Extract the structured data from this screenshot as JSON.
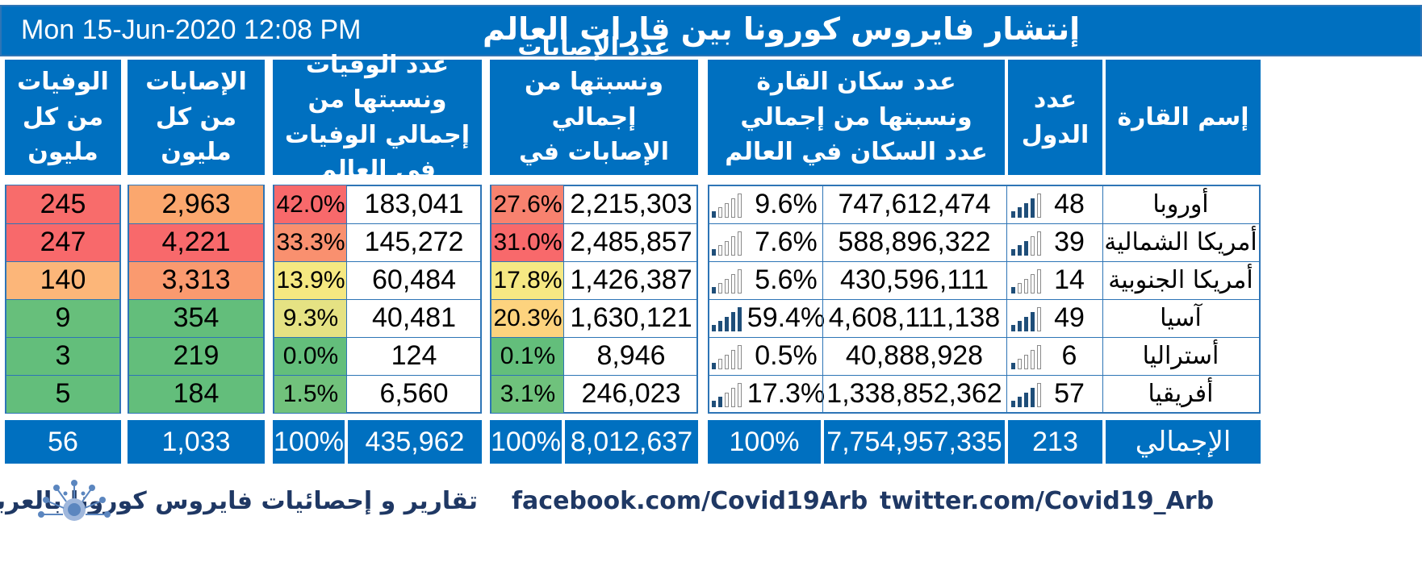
{
  "title": {
    "date": "Mon 15-Jun-2020 12:08 PM",
    "text": "إنتشار فايروس كورونا بين قارات العالم"
  },
  "headers": {
    "continent": "إسم القارة",
    "countries": "عدد الدول",
    "population": "عدد سكان القارة ونسبتها من إجمالي عدد السكان في العالم",
    "cases": "عدد الإصابات ونسبتها من إجمالي الإصابات في العالم",
    "deaths": "عدد الوفيات ونسبتها من إجمالي الوفيات في العالم",
    "cases_per_million": "الإصابات من كل مليون",
    "deaths_per_million": "الوفيات من كل مليون"
  },
  "colors": {
    "header_blue": "#0070c0",
    "border_blue": "#2e75b6",
    "red": "#f8696b",
    "orange": "#fba76e",
    "light_orange": "#fcb679",
    "yellow": "#f5e67e",
    "light_yellow": "#f7eb84",
    "green": "#63be7b",
    "light_green": "#7fc77d",
    "footer_text": "#1f3864"
  },
  "rows": [
    {
      "continent": "أوروبا",
      "countries": "48",
      "country_bars": 4,
      "population": "747,612,474",
      "pop_pct": "9.6%",
      "pop_bars": 1,
      "cases": "2,215,303",
      "cases_pct": "27.6%",
      "cases_pct_color": "#f8826f",
      "deaths": "183,041",
      "deaths_pct": "42.0%",
      "deaths_pct_color": "#f8696b",
      "cases_pm": "2,963",
      "cases_pm_color": "#fba76e",
      "deaths_pm": "245",
      "deaths_pm_color": "#f86c6b"
    },
    {
      "continent": "أمريكا الشمالية",
      "countries": "39",
      "country_bars": 3,
      "population": "588,896,322",
      "pop_pct": "7.6%",
      "pop_bars": 1,
      "cases": "2,485,857",
      "cases_pct": "31.0%",
      "cases_pct_color": "#f8696b",
      "deaths": "145,272",
      "deaths_pct": "33.3%",
      "deaths_pct_color": "#f9906f",
      "cases_pm": "4,221",
      "cases_pm_color": "#f8696b",
      "deaths_pm": "247",
      "deaths_pm_color": "#f8696b"
    },
    {
      "continent": "أمريكا الجنوبية",
      "countries": "14",
      "country_bars": 1,
      "population": "430,596,111",
      "pop_pct": "5.6%",
      "pop_bars": 1,
      "cases": "1,426,387",
      "cases_pct": "17.8%",
      "cases_pct_color": "#f6e883",
      "deaths": "60,484",
      "deaths_pct": "13.9%",
      "deaths_pct_color": "#f5e881",
      "cases_pm": "3,313",
      "cases_pm_color": "#fa9a6f",
      "deaths_pm": "140",
      "deaths_pm_color": "#fcb679"
    },
    {
      "continent": "آسيا",
      "countries": "49",
      "country_bars": 4,
      "population": "4,608,111,138",
      "pop_pct": "59.4%",
      "pop_bars": 5,
      "cases": "1,630,121",
      "cases_pct": "20.3%",
      "cases_pct_color": "#fdd37e",
      "deaths": "40,481",
      "deaths_pct": "9.3%",
      "deaths_pct_color": "#e5e283",
      "cases_pm": "354",
      "cases_pm_color": "#63be7b",
      "deaths_pm": "9",
      "deaths_pm_color": "#67bf7b"
    },
    {
      "continent": "أستراليا",
      "countries": "6",
      "country_bars": 1,
      "population": "40,888,928",
      "pop_pct": "0.5%",
      "pop_bars": 1,
      "cases": "8,946",
      "cases_pct": "0.1%",
      "cases_pct_color": "#63be7b",
      "deaths": "124",
      "deaths_pct": "0.0%",
      "deaths_pct_color": "#63be7b",
      "cases_pm": "219",
      "cases_pm_color": "#63be7b",
      "deaths_pm": "3",
      "deaths_pm_color": "#63be7b"
    },
    {
      "continent": "أفريقيا",
      "countries": "57",
      "country_bars": 4,
      "population": "1,338,852,362",
      "pop_pct": "17.3%",
      "pop_bars": 2,
      "cases": "246,023",
      "cases_pct": "3.1%",
      "cases_pct_color": "#6fc27c",
      "deaths": "6,560",
      "deaths_pct": "1.5%",
      "deaths_pct_color": "#71c27c",
      "cases_pm": "184",
      "cases_pm_color": "#63be7b",
      "deaths_pm": "5",
      "deaths_pm_color": "#63be7b"
    }
  ],
  "totals": {
    "label": "الإجمالي",
    "countries": "213",
    "population": "7,754,957,335",
    "pop_pct": "100%",
    "cases": "8,012,637",
    "cases_pct": "100%",
    "deaths": "435,962",
    "deaths_pct": "100%",
    "cases_pm": "1,033",
    "deaths_pm": "56"
  },
  "footer": {
    "twitter": "twitter.com/Covid19_Arb",
    "facebook": "facebook.com/Covid19Arb",
    "arabic": "تقارير و إحصائيات فايروس كورونا بالعربي",
    "logo_icon": "virus-logo-icon"
  }
}
